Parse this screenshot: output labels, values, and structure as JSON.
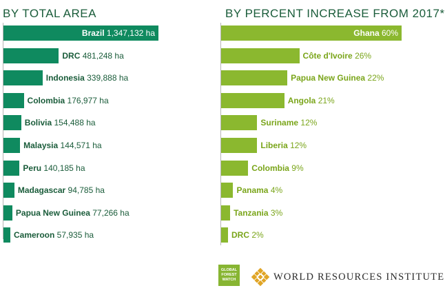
{
  "colors": {
    "left_bar": "#0f8a5f",
    "right_bar": "#8bb82f",
    "left_text": "#1a5c3a",
    "right_text": "#7aa51a"
  },
  "chart_data": [
    {
      "type": "bar",
      "orientation": "horizontal",
      "title": "BY TOTAL AREA",
      "categories": [
        "Brazil",
        "DRC",
        "Indonesia",
        "Colombia",
        "Bolivia",
        "Malaysia",
        "Peru",
        "Madagascar",
        "Papua New Guinea",
        "Cameroon"
      ],
      "values": [
        1347132,
        481248,
        339888,
        176977,
        154488,
        144571,
        140185,
        94785,
        77266,
        57935
      ],
      "value_labels": [
        "1,347,132 ha",
        "481,248 ha",
        "339,888 ha",
        "176,977 ha",
        "154,488 ha",
        "144,571 ha",
        "140,185 ha",
        "94,785 ha",
        "77,266 ha",
        "57,935 ha"
      ],
      "unit": "ha",
      "xlim": [
        0,
        1347132
      ],
      "xlabel": "",
      "ylabel": ""
    },
    {
      "type": "bar",
      "orientation": "horizontal",
      "title": "BY PERCENT INCREASE FROM 2017*",
      "categories": [
        "Ghana",
        "Côte d'Ivoire",
        "Papua New Guinea",
        "Angola",
        "Suriname",
        "Liberia",
        "Colombia",
        "Panama",
        "Tanzania",
        "DRC"
      ],
      "values": [
        60,
        26,
        22,
        21,
        12,
        12,
        9,
        4,
        3,
        2
      ],
      "value_labels": [
        "60%",
        "26%",
        "22%",
        "21%",
        "12%",
        "12%",
        "9%",
        "4%",
        "3%",
        "2%"
      ],
      "unit": "%",
      "xlim": [
        0,
        60
      ],
      "xlabel": "",
      "ylabel": ""
    }
  ],
  "logos": {
    "gfw_lines": [
      "GLOBAL",
      "FOREST",
      "WATCH"
    ],
    "wri_name": "WORLD RESOURCES INSTITUTE"
  }
}
